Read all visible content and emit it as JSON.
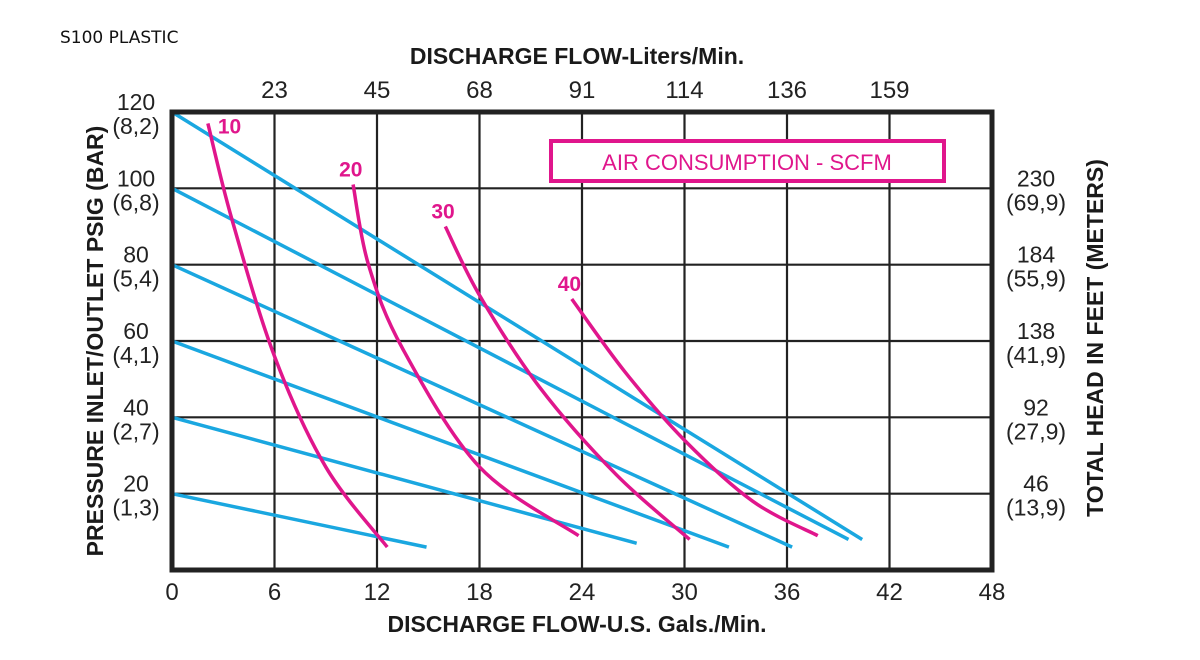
{
  "page_label": "S100 PLASTIC",
  "chart_data": {
    "type": "line",
    "title": "S100 PLASTIC",
    "xlabel": "DISCHARGE FLOW-U.S. Gals./Min.",
    "x2label": "DISCHARGE FLOW-Liters/Min.",
    "ylabel": "PRESSURE INLET/OUTLET PSIG (BAR)",
    "y2label": "TOTAL HEAD IN FEET (METERS)",
    "legend_box": "AIR CONSUMPTION - SCFM",
    "xlim": [
      0,
      48
    ],
    "ylim": [
      0,
      120
    ],
    "grid": true,
    "x_ticks": [
      "0",
      "6",
      "12",
      "18",
      "24",
      "30",
      "36",
      "42",
      "48"
    ],
    "x2_ticks": [
      "23",
      "45",
      "68",
      "91",
      "114",
      "136",
      "159"
    ],
    "y_ticks": [
      {
        "psi": "120",
        "bar": "(8,2)"
      },
      {
        "psi": "100",
        "bar": "(6,8)"
      },
      {
        "psi": "80",
        "bar": "(5,4)"
      },
      {
        "psi": "60",
        "bar": "(4,1)"
      },
      {
        "psi": "40",
        "bar": "(2,7)"
      },
      {
        "psi": "20",
        "bar": "(1,3)"
      }
    ],
    "y2_ticks": [
      {
        "feet": "230",
        "meters": "(69,9)"
      },
      {
        "feet": "184",
        "meters": "(55,9)"
      },
      {
        "feet": "138",
        "meters": "(41,9)"
      },
      {
        "feet": "92",
        "meters": "(27,9)"
      },
      {
        "feet": "46",
        "meters": "(13,9)"
      }
    ],
    "pressure_series_color": "#1aa7e0",
    "air_series_color": "#e0168c",
    "series": [
      {
        "name": "120 psig",
        "kind": "pressure",
        "points": [
          [
            0,
            120
          ],
          [
            40.4,
            8
          ]
        ]
      },
      {
        "name": "100 psig",
        "kind": "pressure",
        "points": [
          [
            0,
            100
          ],
          [
            39.6,
            8
          ]
        ]
      },
      {
        "name": "80 psig",
        "kind": "pressure",
        "points": [
          [
            0,
            80
          ],
          [
            36.3,
            6
          ]
        ]
      },
      {
        "name": "60 psig",
        "kind": "pressure",
        "points": [
          [
            0,
            60
          ],
          [
            32.6,
            6
          ]
        ]
      },
      {
        "name": "40 psig",
        "kind": "pressure",
        "points": [
          [
            0,
            40
          ],
          [
            27.2,
            7
          ]
        ]
      },
      {
        "name": "20 psig",
        "kind": "pressure",
        "points": [
          [
            0,
            20
          ],
          [
            14.9,
            6
          ]
        ]
      },
      {
        "name": "10 SCFM",
        "kind": "air",
        "label": "10",
        "points": [
          [
            2.1,
            117
          ],
          [
            3.5,
            92
          ],
          [
            6,
            56
          ],
          [
            9,
            27
          ],
          [
            12.6,
            6
          ]
        ]
      },
      {
        "name": "20 SCFM",
        "kind": "air",
        "label": "20",
        "points": [
          [
            10.6,
            101
          ],
          [
            11.5,
            80
          ],
          [
            13.5,
            58
          ],
          [
            18,
            27
          ],
          [
            23.8,
            9
          ]
        ]
      },
      {
        "name": "30 SCFM",
        "kind": "air",
        "label": "30",
        "points": [
          [
            16,
            90
          ],
          [
            18,
            72
          ],
          [
            21.5,
            48
          ],
          [
            26,
            25
          ],
          [
            30.3,
            8
          ]
        ]
      },
      {
        "name": "40 SCFM",
        "kind": "air",
        "label": "40",
        "points": [
          [
            23.4,
            71
          ],
          [
            26.5,
            52
          ],
          [
            30,
            34
          ],
          [
            34,
            18
          ],
          [
            37.8,
            9
          ]
        ]
      }
    ]
  }
}
